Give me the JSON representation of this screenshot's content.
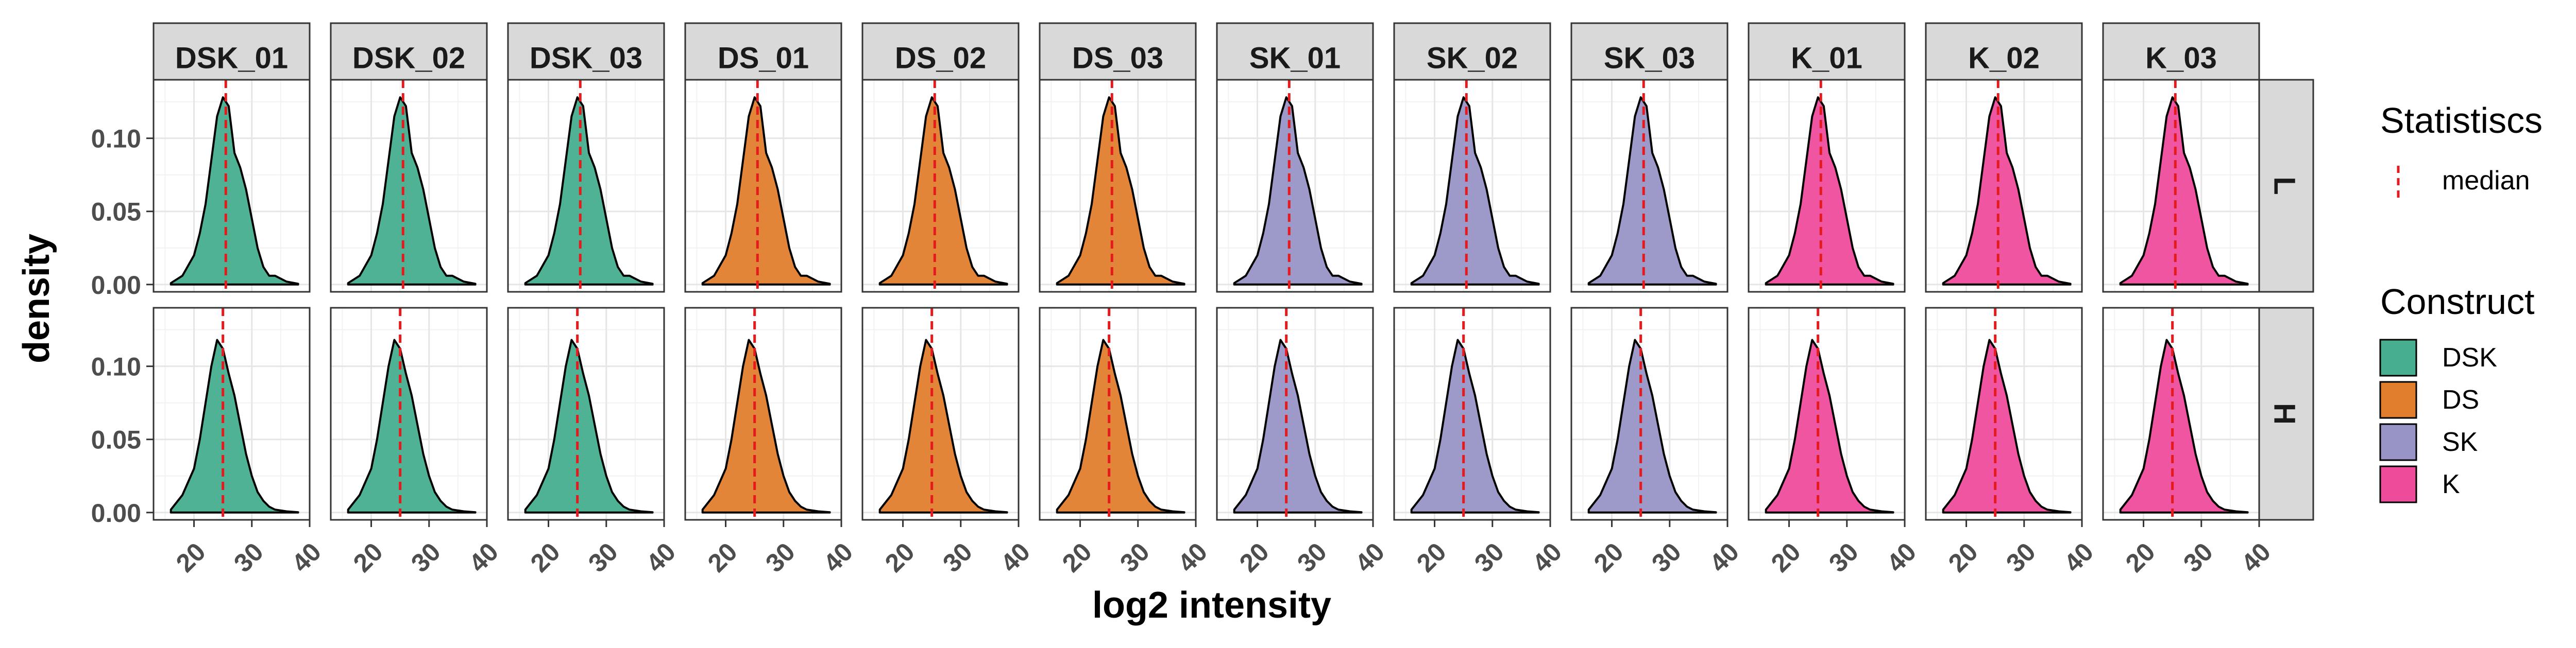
{
  "chart_data": {
    "type": "area",
    "chart_kind": "faceted density plot",
    "xlabel": "log2 intensity",
    "ylabel": "density",
    "xlim": [
      13,
      40
    ],
    "ylim": [
      -0.005,
      0.14
    ],
    "x_ticks": [
      20,
      30,
      40
    ],
    "x_tick_labels": [
      "20",
      "30",
      "40"
    ],
    "y_ticks": [
      0.0,
      0.05,
      0.1
    ],
    "y_tick_labels": [
      "0.00",
      "0.05",
      "0.10"
    ],
    "grid": true,
    "legend_placement": "right",
    "columns": [
      "DSK_01",
      "DSK_02",
      "DSK_03",
      "DS_01",
      "DS_02",
      "DS_03",
      "SK_01",
      "SK_02",
      "SK_03",
      "K_01",
      "K_02",
      "K_03"
    ],
    "column_construct": [
      "DSK",
      "DSK",
      "DSK",
      "DS",
      "DS",
      "DS",
      "SK",
      "SK",
      "SK",
      "K",
      "K",
      "K"
    ],
    "rows": [
      "L",
      "H"
    ],
    "constructs": [
      {
        "name": "DSK",
        "color": "#47AE8F"
      },
      {
        "name": "DS",
        "color": "#E07E2E"
      },
      {
        "name": "SK",
        "color": "#9894C6"
      },
      {
        "name": "K",
        "color": "#EE4C9B"
      }
    ],
    "statistics_legend": {
      "title": "Statistiscs",
      "label": "median",
      "color": "#E41A1C"
    },
    "construct_legend_title": "Construct",
    "median_by_row": {
      "L": 25.5,
      "H": 25.0
    },
    "density_x": [
      16,
      18,
      20,
      21,
      22,
      23,
      24,
      25,
      26,
      27,
      28,
      29,
      30,
      31,
      32,
      33,
      34,
      36,
      38
    ],
    "density_by_row": {
      "L": [
        0.001,
        0.006,
        0.02,
        0.035,
        0.055,
        0.085,
        0.115,
        0.128,
        0.122,
        0.09,
        0.08,
        0.065,
        0.045,
        0.025,
        0.012,
        0.006,
        0.006,
        0.002,
        0.0005
      ],
      "H": [
        0.002,
        0.012,
        0.03,
        0.05,
        0.075,
        0.1,
        0.118,
        0.112,
        0.095,
        0.08,
        0.06,
        0.04,
        0.025,
        0.014,
        0.008,
        0.004,
        0.002,
        0.0008,
        0.0002
      ]
    }
  }
}
